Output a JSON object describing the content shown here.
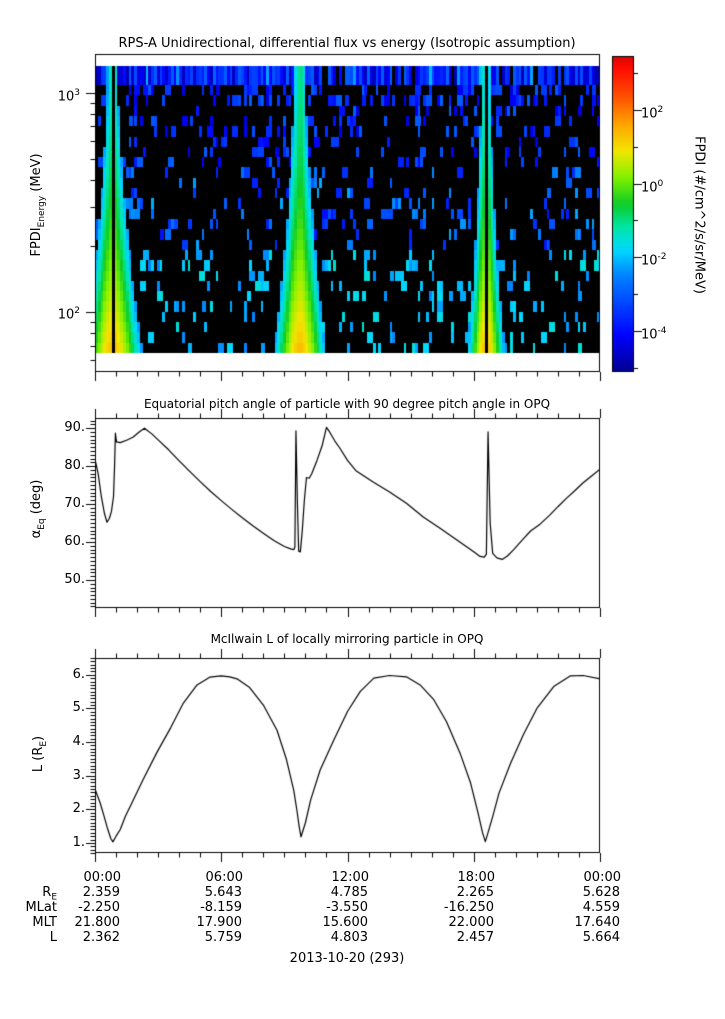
{
  "figure": {
    "date_label": "2013-10-20 (293)",
    "background": "#ffffff",
    "foreground": "#000000"
  },
  "xaxis": {
    "start_hour": 0,
    "end_hour": 24,
    "minor_step_h": 1,
    "major_step_h": 6,
    "tick_labels": [
      "00:00",
      "06:00",
      "12:00",
      "18:00",
      "00:00"
    ]
  },
  "chart_data": [
    {
      "type": "heatmap",
      "title": "RPS-A Unidirectional, differential flux vs energy (Isotropic assumption)",
      "ylabel": {
        "text": "FPDI_Energy (MeV)",
        "main": "FPDI",
        "sub": "Energy",
        "rest": " (MeV)"
      },
      "yscale": "log",
      "ylim_mev": [
        53,
        1500
      ],
      "yticks": [
        {
          "value": 1000,
          "base": "10",
          "exp": "3"
        },
        {
          "value": 100,
          "base": "10",
          "exp": "2"
        }
      ],
      "background_color": "#000000",
      "top_band": {
        "e_top_mev": 1350,
        "e_bottom_mev": 1150,
        "description": "continuous highest-energy channel, blue flux with black dropouts"
      },
      "no_data_above_mev": 1350,
      "no_data_below_mev": 62,
      "energy_bins_below_band": 26,
      "perigee_flux_wedges": [
        {
          "center_hour": 0.85,
          "halfwidth_bottom_h": 1.97,
          "halfwidth_top_h": 0.5,
          "gap_h": 0.22
        },
        {
          "center_hour": 9.74,
          "halfwidth_bottom_h": 1.77,
          "halfwidth_top_h": 0.55,
          "gap_h": 0.1
        },
        {
          "center_hour": 18.58,
          "halfwidth_bottom_h": 1.26,
          "halfwidth_top_h": 0.4,
          "gap_h": 0.12
        }
      ],
      "colorbar": {
        "label": "FPDI (#/cm^2/s/sr/MeV)",
        "scale": "log",
        "tick_exponents": [
          2,
          0,
          -2,
          -4
        ],
        "minor_tick_exponents": [
          3,
          1,
          -1,
          -3,
          -5
        ],
        "ticks": [
          {
            "base": "10",
            "exp": "2"
          },
          {
            "base": "10",
            "exp": "0"
          },
          {
            "base": "10",
            "exp": "-2"
          },
          {
            "base": "10",
            "exp": "-4"
          }
        ],
        "top_exponent": 3.47,
        "bottom_exponent": -5.12
      }
    },
    {
      "type": "line",
      "title": "Equatorial pitch angle of particle with 90 degree pitch angle in OPQ",
      "ylabel": {
        "text": "alpha_Eq (deg)",
        "main": "α",
        "sub": "Eq",
        "rest": " (deg)"
      },
      "ylim": [
        42.6,
        92.68
      ],
      "yticks": [
        {
          "value": 90,
          "label": "90."
        },
        {
          "value": 80,
          "label": "80."
        },
        {
          "value": 70,
          "label": "70."
        },
        {
          "value": 60,
          "label": "60."
        },
        {
          "value": 50,
          "label": "50."
        }
      ],
      "minor_tick_step": 1,
      "x_hours": [
        0,
        0.15,
        0.3,
        0.45,
        0.57,
        0.68,
        0.78,
        0.88,
        0.93,
        0.97,
        1.02,
        1.2,
        1.5,
        1.8,
        2.1,
        2.35,
        2.7,
        3,
        3.5,
        4,
        4.5,
        5,
        5.5,
        6,
        6.5,
        7,
        7.5,
        8,
        8.5,
        9,
        9.3,
        9.45,
        9.5,
        9.55,
        9.62,
        9.68,
        9.76,
        9.85,
        9.95,
        10.05,
        10.18,
        10.3,
        10.55,
        10.8,
        11,
        11.15,
        11.4,
        11.64,
        12,
        12.4,
        13.2,
        14,
        14.8,
        15.6,
        16.4,
        17.2,
        18,
        18.3,
        18.5,
        18.6,
        18.68,
        18.78,
        18.9,
        19.1,
        19.35,
        19.6,
        19.9,
        20.3,
        20.7,
        21.15,
        21.6,
        22,
        22.4,
        22.8,
        23.2,
        23.6,
        24
      ],
      "y_deg": [
        81.8,
        78,
        72,
        67.5,
        65.2,
        66.2,
        68,
        72,
        80,
        88.7,
        86.4,
        86.2,
        86.8,
        87.6,
        89,
        90,
        88.5,
        86.9,
        84.3,
        81.4,
        78.6,
        75.9,
        73.3,
        70.9,
        68.6,
        66.4,
        64.3,
        62.3,
        60.4,
        58.8,
        58.2,
        58,
        58.6,
        89.3,
        70,
        57.6,
        57.4,
        63,
        71,
        77,
        76.8,
        78,
        81.5,
        85.5,
        90.2,
        89,
        86.6,
        84.7,
        81.5,
        78.8,
        75.9,
        73.2,
        70.2,
        66.6,
        63.6,
        60.5,
        57.4,
        56.2,
        56,
        56.8,
        89,
        65,
        57,
        55.8,
        55.4,
        56.3,
        58,
        60.5,
        62.9,
        64.7,
        67,
        69.3,
        71.5,
        73.5,
        75.6,
        77.4,
        79.2
      ]
    },
    {
      "type": "line",
      "title": "McIlwain L of locally mirroring particle in OPQ",
      "ylabel": {
        "text": "L (R_E)",
        "main": "L (R",
        "sub": "E",
        "rest": ")"
      },
      "ylim": [
        0.7,
        6.5
      ],
      "yticks": [
        {
          "value": 6,
          "label": "6."
        },
        {
          "value": 5,
          "label": "5."
        },
        {
          "value": 4,
          "label": "4."
        },
        {
          "value": 3,
          "label": "3."
        },
        {
          "value": 2,
          "label": "2."
        },
        {
          "value": 1,
          "label": "1."
        }
      ],
      "minor_tick_step": 0.1,
      "x_hours": [
        0,
        0.25,
        0.45,
        0.6,
        0.75,
        0.85,
        1,
        1.2,
        1.45,
        1.7,
        2.3,
        2.95,
        3.6,
        4.2,
        4.85,
        5.45,
        6,
        6.4,
        6.75,
        7.35,
        8,
        8.65,
        9.1,
        9.3,
        9.45,
        9.6,
        9.7,
        9.79,
        9.9,
        10,
        10.25,
        10.7,
        11.35,
        12,
        12.6,
        13.25,
        14,
        14.8,
        15.45,
        16.1,
        16.7,
        17.35,
        17.85,
        18.2,
        18.42,
        18.55,
        18.7,
        18.9,
        19.2,
        19.75,
        20.35,
        21,
        21.8,
        22.6,
        23.2,
        24
      ],
      "y_l": [
        2.6,
        2.18,
        1.75,
        1.42,
        1.13,
        1.03,
        1.2,
        1.4,
        1.8,
        2.12,
        2.9,
        3.7,
        4.43,
        5.16,
        5.7,
        5.93,
        5.97,
        5.94,
        5.88,
        5.62,
        5.1,
        4.35,
        3.48,
        2.95,
        2.55,
        1.95,
        1.5,
        1.18,
        1.4,
        1.6,
        2.28,
        3.17,
        4.06,
        4.91,
        5.5,
        5.9,
        5.98,
        5.94,
        5.7,
        5.26,
        4.61,
        3.67,
        2.78,
        1.9,
        1.3,
        1.04,
        1.35,
        1.78,
        2.48,
        3.37,
        4.21,
        5,
        5.65,
        5.97,
        5.98,
        5.88
      ]
    }
  ],
  "ephemeris": {
    "rows": [
      {
        "label": "R",
        "label_sub": "E",
        "values": [
          "2.359",
          "5.643",
          "4.785",
          "2.265",
          "5.628"
        ]
      },
      {
        "label": "MLat",
        "label_sub": "",
        "values": [
          "-2.250",
          "-8.159",
          "-3.550",
          "-16.250",
          "4.559"
        ]
      },
      {
        "label": "MLT",
        "label_sub": "",
        "values": [
          "21.800",
          "17.900",
          "15.600",
          "22.000",
          "17.640"
        ]
      },
      {
        "label": "L",
        "label_sub": "",
        "values": [
          "2.362",
          "5.759",
          "4.803",
          "2.457",
          "5.664"
        ]
      }
    ]
  }
}
